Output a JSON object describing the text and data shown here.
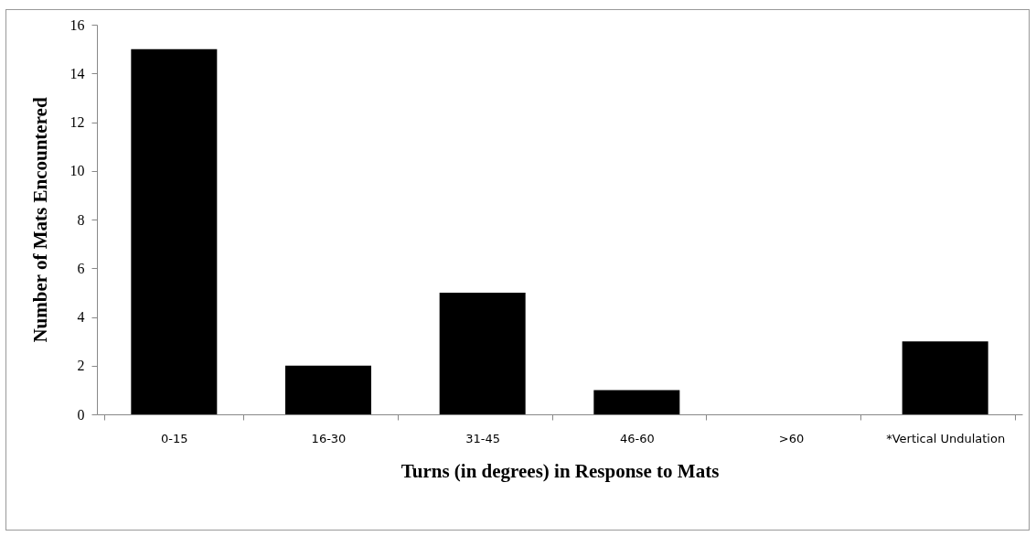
{
  "chart_data": {
    "type": "bar",
    "xlabel": "Turns (in degrees) in Response to Mats",
    "ylabel": "Number of Mats Encountered",
    "categories": [
      "0-15",
      "16-30",
      "31-45",
      "46-60",
      ">60",
      "*Vertical Undulation"
    ],
    "values": [
      15,
      2,
      5,
      1,
      0,
      3
    ],
    "color": "#000000",
    "ylim": [
      0,
      16
    ],
    "yticks": [
      0,
      2,
      4,
      6,
      8,
      10,
      12,
      14,
      16
    ],
    "grid": false
  }
}
